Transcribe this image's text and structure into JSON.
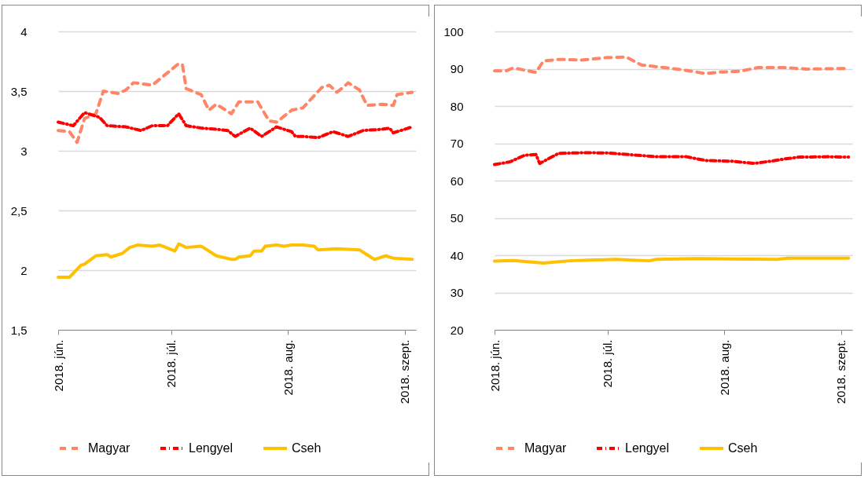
{
  "chart_data": [
    {
      "type": "line",
      "grid": "y",
      "legend": "bottom",
      "xlim": [
        "2018-06-01",
        "2018-09-04"
      ],
      "xticks": [
        {
          "value": "2018-06-01",
          "label": "2018. jún."
        },
        {
          "value": "2018-07-01",
          "label": "2018. júl."
        },
        {
          "value": "2018-08-01",
          "label": "2018. aug."
        },
        {
          "value": "2018-09-01",
          "label": "2018. szept."
        }
      ],
      "ylim": [
        1.5,
        4
      ],
      "yticks": [
        {
          "value": 1.5,
          "label": "1,5"
        },
        2,
        {
          "value": 2.5,
          "label": "2,5"
        },
        3,
        {
          "value": 3.5,
          "label": "3,5"
        },
        4
      ],
      "series": [
        {
          "name": "Magyar",
          "color": "#ff8566",
          "line_style": "dashed",
          "x": [
            "2018-06-01",
            "2018-06-04",
            "2018-06-06",
            "2018-06-08",
            "2018-06-11",
            "2018-06-13",
            "2018-06-17",
            "2018-06-19",
            "2018-06-21",
            "2018-06-26",
            "2018-07-03",
            "2018-07-04",
            "2018-07-05",
            "2018-07-09",
            "2018-07-11",
            "2018-07-13",
            "2018-07-17",
            "2018-07-19",
            "2018-07-24",
            "2018-07-27",
            "2018-07-29",
            "2018-08-02",
            "2018-08-05",
            "2018-08-10",
            "2018-08-12",
            "2018-08-14",
            "2018-08-16",
            "2018-08-17",
            "2018-08-20",
            "2018-08-22",
            "2018-08-26",
            "2018-08-29",
            "2018-08-30",
            "2018-09-03"
          ],
          "values": [
            3.17,
            3.16,
            3.07,
            3.27,
            3.31,
            3.5,
            3.48,
            3.51,
            3.57,
            3.55,
            3.73,
            3.72,
            3.52,
            3.47,
            3.34,
            3.39,
            3.31,
            3.41,
            3.41,
            3.25,
            3.24,
            3.34,
            3.36,
            3.53,
            3.55,
            3.49,
            3.54,
            3.57,
            3.51,
            3.38,
            3.39,
            3.38,
            3.47,
            3.49
          ]
        },
        {
          "name": "Lengyel",
          "color": "#ff0000",
          "line_style": "dashdot",
          "x": [
            "2018-06-01",
            "2018-06-05",
            "2018-06-08",
            "2018-06-12",
            "2018-06-14",
            "2018-06-19",
            "2018-06-23",
            "2018-06-26",
            "2018-06-30",
            "2018-07-03",
            "2018-07-05",
            "2018-07-09",
            "2018-07-13",
            "2018-07-16",
            "2018-07-18",
            "2018-07-22",
            "2018-07-25",
            "2018-07-29",
            "2018-08-02",
            "2018-08-03",
            "2018-08-05",
            "2018-08-09",
            "2018-08-13",
            "2018-08-17",
            "2018-08-21",
            "2018-08-26",
            "2018-08-28",
            "2018-08-29",
            "2018-09-03"
          ],
          "values": [
            3.24,
            3.21,
            3.32,
            3.28,
            3.21,
            3.2,
            3.17,
            3.21,
            3.21,
            3.31,
            3.21,
            3.19,
            3.18,
            3.17,
            3.12,
            3.19,
            3.12,
            3.2,
            3.16,
            3.12,
            3.12,
            3.11,
            3.16,
            3.12,
            3.17,
            3.18,
            3.19,
            3.15,
            3.2
          ]
        },
        {
          "name": "Cseh",
          "color": "#ffc000",
          "line_style": "solid",
          "x": [
            "2018-06-01",
            "2018-06-04",
            "2018-06-07",
            "2018-06-08",
            "2018-06-11",
            "2018-06-14",
            "2018-06-15",
            "2018-06-18",
            "2018-06-20",
            "2018-06-22",
            "2018-06-26",
            "2018-06-28",
            "2018-07-02",
            "2018-07-03",
            "2018-07-05",
            "2018-07-09",
            "2018-07-11",
            "2018-07-13",
            "2018-07-17",
            "2018-07-18",
            "2018-07-19",
            "2018-07-22",
            "2018-07-23",
            "2018-07-25",
            "2018-07-26",
            "2018-07-29",
            "2018-07-31",
            "2018-08-02",
            "2018-08-05",
            "2018-08-08",
            "2018-08-09",
            "2018-08-14",
            "2018-08-20",
            "2018-08-22",
            "2018-08-24",
            "2018-08-27",
            "2018-08-29",
            "2018-09-03"
          ],
          "values": [
            1.94,
            1.94,
            2.04,
            2.05,
            2.12,
            2.13,
            2.11,
            2.14,
            2.19,
            2.21,
            2.2,
            2.21,
            2.16,
            2.22,
            2.19,
            2.2,
            2.16,
            2.12,
            2.09,
            2.09,
            2.11,
            2.12,
            2.16,
            2.16,
            2.2,
            2.21,
            2.2,
            2.21,
            2.21,
            2.2,
            2.17,
            2.18,
            2.17,
            2.13,
            2.09,
            2.12,
            2.1,
            2.09
          ]
        }
      ]
    },
    {
      "type": "line",
      "grid": "y",
      "legend": "bottom",
      "xlim": [
        "2018-06-01",
        "2018-09-04"
      ],
      "xticks": [
        {
          "value": "2018-06-01",
          "label": "2018. jún."
        },
        {
          "value": "2018-07-01",
          "label": "2018. júl."
        },
        {
          "value": "2018-08-01",
          "label": "2018. aug."
        },
        {
          "value": "2018-09-01",
          "label": "2018. szept."
        }
      ],
      "ylim": [
        20,
        100
      ],
      "yticks": [
        20,
        30,
        40,
        50,
        60,
        70,
        80,
        90,
        100
      ],
      "series": [
        {
          "name": "Magyar",
          "color": "#ff8566",
          "line_style": "dashed",
          "x": [
            "2018-06-01",
            "2018-06-04",
            "2018-06-06",
            "2018-06-12",
            "2018-06-14",
            "2018-06-18",
            "2018-06-24",
            "2018-07-01",
            "2018-07-06",
            "2018-07-10",
            "2018-07-17",
            "2018-07-21",
            "2018-07-27",
            "2018-07-31",
            "2018-08-05",
            "2018-08-10",
            "2018-08-17",
            "2018-08-23",
            "2018-09-03"
          ],
          "values": [
            89.4,
            89.4,
            90.2,
            89,
            92.1,
            92.5,
            92.3,
            93,
            93.1,
            91,
            90.2,
            89.7,
            88.7,
            89.1,
            89.3,
            90.3,
            90.3,
            89.9,
            90.1
          ]
        },
        {
          "name": "Lengyel",
          "color": "#ff0000",
          "line_style": "dashdot",
          "x": [
            "2018-06-01",
            "2018-06-05",
            "2018-06-09",
            "2018-06-12",
            "2018-06-13",
            "2018-06-18",
            "2018-06-25",
            "2018-07-01",
            "2018-07-09",
            "2018-07-14",
            "2018-07-22",
            "2018-07-27",
            "2018-08-03",
            "2018-08-09",
            "2018-08-14",
            "2018-08-17",
            "2018-08-21",
            "2018-08-29",
            "2018-09-03"
          ],
          "values": [
            64.3,
            65,
            66.8,
            67,
            64.6,
            67.3,
            67.5,
            67.4,
            66.8,
            66.4,
            66.4,
            65.4,
            65.2,
            64.6,
            65.3,
            65.8,
            66.3,
            66.4,
            66.3
          ]
        },
        {
          "name": "Cseh",
          "color": "#ffc000",
          "line_style": "solid",
          "x": [
            "2018-06-01",
            "2018-06-06",
            "2018-06-14",
            "2018-06-21",
            "2018-07-03",
            "2018-07-12",
            "2018-07-14",
            "2018-07-25",
            "2018-08-03",
            "2018-08-15",
            "2018-08-18",
            "2018-09-03"
          ],
          "values": [
            38.4,
            38.6,
            37.9,
            38.5,
            38.9,
            38.5,
            38.9,
            39.1,
            39,
            38.9,
            39.2,
            39.2
          ]
        }
      ]
    }
  ]
}
